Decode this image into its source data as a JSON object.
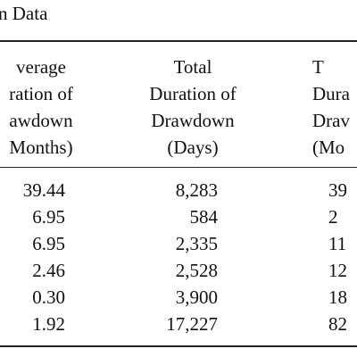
{
  "title": "n Data",
  "columns": [
    {
      "lines": [
        "verage",
        "ration of",
        "awdown",
        "Months)"
      ]
    },
    {
      "lines": [
        "Total",
        "Duration of",
        "Drawdown",
        "(Days)"
      ]
    },
    {
      "lines": [
        "T",
        "Dura",
        "Drav",
        "(Mo"
      ]
    }
  ],
  "rows": [
    [
      "39.44",
      "8,283",
      "39"
    ],
    [
      "6.95",
      "584",
      "2"
    ],
    [
      "6.95",
      "2,335",
      "11"
    ],
    [
      "2.46",
      "2,528",
      "12"
    ],
    [
      "0.30",
      "3,900",
      "18"
    ],
    [
      "1.92",
      "17,227",
      "82"
    ]
  ]
}
